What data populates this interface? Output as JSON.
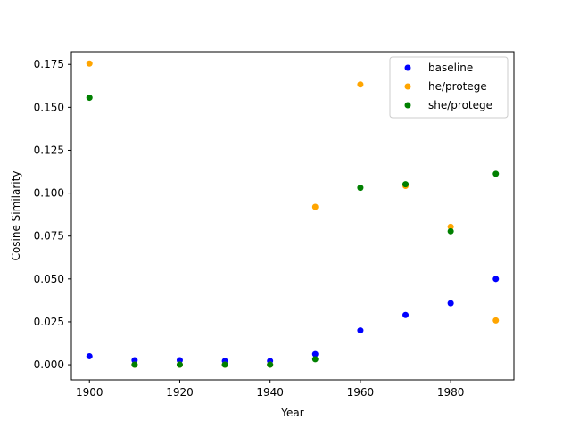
{
  "chart_data": {
    "type": "scatter",
    "title": "",
    "xlabel": "Year",
    "ylabel": "Cosine Similarity",
    "xlim": [
      1896,
      1994
    ],
    "ylim": [
      -0.0088,
      0.1824
    ],
    "x_ticks": [
      1900,
      1920,
      1940,
      1960,
      1980
    ],
    "x_tick_labels": [
      "1900",
      "1920",
      "1940",
      "1960",
      "1980"
    ],
    "y_ticks": [
      0.0,
      0.025,
      0.05,
      0.075,
      0.1,
      0.125,
      0.15,
      0.175
    ],
    "y_tick_labels": [
      "0.000",
      "0.025",
      "0.050",
      "0.075",
      "0.100",
      "0.125",
      "0.150",
      "0.175"
    ],
    "grid": false,
    "legend_position": "top-right",
    "x": [
      1900,
      1910,
      1920,
      1930,
      1940,
      1950,
      1960,
      1970,
      1980,
      1990
    ],
    "series": [
      {
        "name": "baseline",
        "color": "#0000ff",
        "values": [
          0.005,
          0.0026,
          0.0026,
          0.0022,
          0.0022,
          0.0062,
          0.02,
          0.029,
          0.0358,
          0.05
        ]
      },
      {
        "name": "he/protege",
        "color": "#ffa500",
        "values": [
          0.1755,
          0.0,
          0.0,
          0.0,
          0.0,
          0.092,
          0.1633,
          0.1042,
          0.0804,
          0.0258
        ]
      },
      {
        "name": "she/protege",
        "color": "#008000",
        "values": [
          0.1556,
          0.0,
          0.0,
          0.0,
          0.0,
          0.0032,
          0.1031,
          0.1052,
          0.0778,
          0.1113
        ]
      }
    ]
  }
}
